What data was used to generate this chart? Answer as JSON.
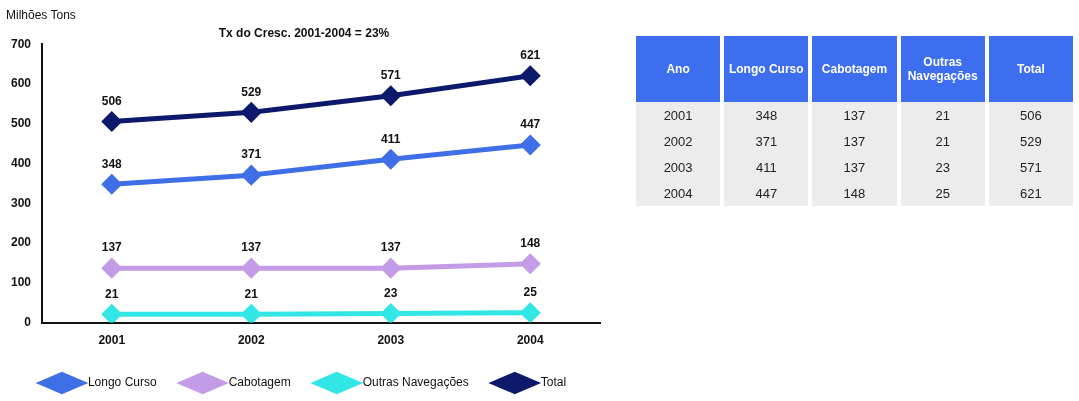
{
  "chart_data": [
    {
      "type": "line",
      "title": "Tx do Cresc. 2001-2004 = 23%",
      "ylabel": "Milhões Tons",
      "categories": [
        "2001",
        "2002",
        "2003",
        "2004"
      ],
      "series": [
        {
          "name": "Longo Curso",
          "color": "#3f6fe6",
          "values": [
            348,
            371,
            411,
            447
          ]
        },
        {
          "name": "Cabotagem",
          "color": "#c39be6",
          "values": [
            137,
            137,
            137,
            148
          ]
        },
        {
          "name": "Outras Navegações",
          "color": "#33e6e6",
          "values": [
            21,
            21,
            23,
            25
          ]
        },
        {
          "name": "Total",
          "color": "#0d1a6b",
          "values": [
            506,
            529,
            571,
            621
          ]
        }
      ],
      "ylim": [
        0,
        700
      ],
      "yticks": [
        0,
        100,
        200,
        300,
        400,
        500,
        600,
        700
      ],
      "grid": false,
      "legend": "bottom",
      "marker": "diamond",
      "line_style": "solid",
      "data_labels": true
    },
    {
      "type": "heatmap",
      "ylabel": "Ano",
      "categories": [
        "Longo Curso",
        "Cabotagem",
        "Outras Navegações",
        "Total"
      ],
      "y_categories": [
        "2001",
        "2002",
        "2003",
        "2004"
      ],
      "cells": [
        [
          348,
          137,
          21,
          506
        ],
        [
          371,
          137,
          21,
          529
        ],
        [
          411,
          137,
          23,
          571
        ],
        [
          447,
          148,
          25,
          621
        ]
      ],
      "color": "#ececec",
      "data_labels": true
    }
  ]
}
